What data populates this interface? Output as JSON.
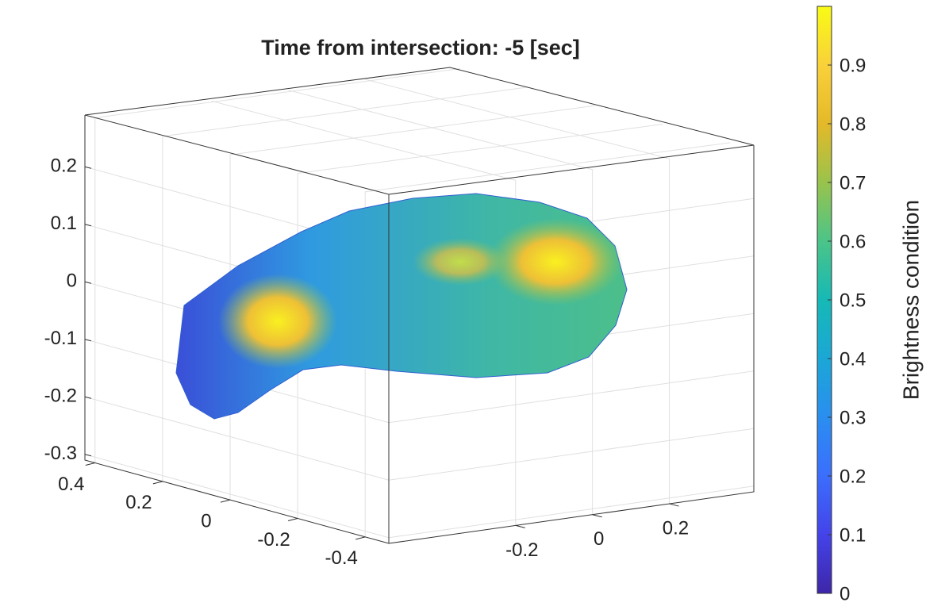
{
  "chart_data": {
    "type": "surface3d",
    "title": "Time from intersection: -5 [sec]",
    "xlim": [
      0.43,
      -0.47
    ],
    "xticks": [
      0.4,
      0.2,
      0,
      -0.2,
      -0.4
    ],
    "ylim": [
      -0.53,
      0.42
    ],
    "yticks": [
      -0.2,
      0,
      0.2
    ],
    "zlim": [
      -0.31,
      0.29
    ],
    "zticks": [
      -0.3,
      -0.2,
      -0.1,
      0,
      0.1,
      0.2
    ],
    "grid": true,
    "colorbar": {
      "label": "Brightness condition",
      "clim": [
        0,
        1
      ],
      "ticks": [
        0,
        0.1,
        0.2,
        0.3,
        0.4,
        0.5,
        0.6,
        0.7,
        0.8,
        0.9
      ]
    }
  }
}
